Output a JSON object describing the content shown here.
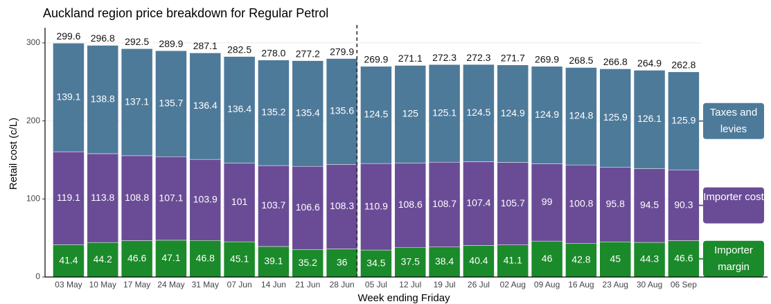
{
  "chart_data": {
    "type": "stacked_bar",
    "title": "Auckland region price breakdown for Regular Petrol",
    "x_label": "Week ending Friday",
    "y_label": "Retail cost (c/L)",
    "categories": [
      "03 May",
      "10 May",
      "17 May",
      "24 May",
      "31 May",
      "07 Jun",
      "14 Jun",
      "21 Jun",
      "28 Jun",
      "05 Jul",
      "12 Jul",
      "19 Jul",
      "26 Jul",
      "02 Aug",
      "09 Aug",
      "16 Aug",
      "23 Aug",
      "30 Aug",
      "06 Sep"
    ],
    "series": [
      {
        "name": "Importer margin",
        "color": "#1b8a2a",
        "values": [
          41.4,
          44.2,
          46.6,
          47.1,
          46.8,
          45.1,
          39.1,
          35.2,
          36,
          34.5,
          37.5,
          38.4,
          40.4,
          41.1,
          46,
          42.8,
          45,
          44.3,
          46.6
        ]
      },
      {
        "name": "Importer cost",
        "color": "#6a4c96",
        "values": [
          119.1,
          113.8,
          108.8,
          107.1,
          103.9,
          101,
          103.7,
          106.6,
          108.3,
          110.9,
          108.6,
          108.7,
          107.4,
          105.7,
          99,
          100.8,
          95.8,
          94.5,
          90.3
        ]
      },
      {
        "name": "Taxes and levies",
        "color": "#4e7a9a",
        "values": [
          139.1,
          138.8,
          137.1,
          135.7,
          136.4,
          136.4,
          135.2,
          135.4,
          135.6,
          124.5,
          125,
          125.1,
          124.5,
          124.9,
          124.9,
          124.8,
          125.9,
          126.1,
          125.9
        ]
      }
    ],
    "totals": [
      299.6,
      296.8,
      292.5,
      289.9,
      287.1,
      282.5,
      278.0,
      277.2,
      279.9,
      269.9,
      271.1,
      272.3,
      272.3,
      271.7,
      269.9,
      268.5,
      266.8,
      264.9,
      262.8
    ],
    "totals_labels": [
      "299.6",
      "296.8",
      "292.5",
      "289.9",
      "287.1",
      "282.5",
      "278.0",
      "277.2",
      "279.9",
      "269.9",
      "271.1",
      "272.3",
      "272.3",
      "271.7",
      "269.9",
      "268.5",
      "266.8",
      "264.9",
      "262.8"
    ],
    "ylim": [
      0,
      315
    ],
    "yticks": [
      0,
      100,
      200,
      300
    ],
    "grid": true
  }
}
